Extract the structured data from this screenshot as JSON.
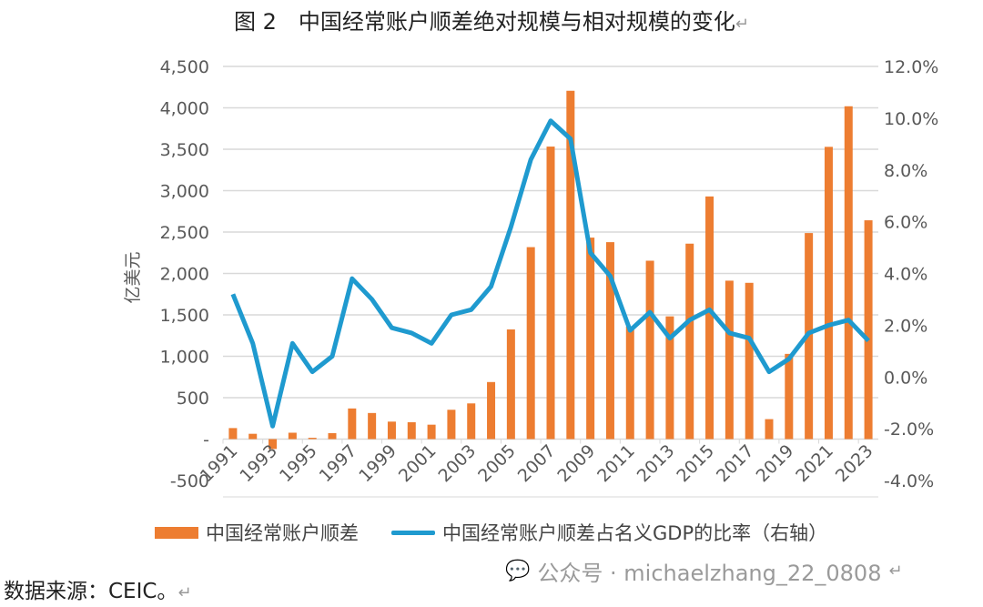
{
  "title": "图 2　中国经常账户顺差绝对规模与相对规模的变化",
  "source": "数据来源：CEIC。",
  "watermark": "公众号 · michaelzhang_22_0808",
  "chart_data": {
    "type": "bar+line",
    "ylabel": "亿美元",
    "ylim": [
      -500,
      4500
    ],
    "y_ticks": [
      "-500",
      "-",
      "500",
      "1,000",
      "1,500",
      "2,000",
      "2,500",
      "3,000",
      "3,500",
      "4,000",
      "4,500"
    ],
    "y2lim": [
      -4.0,
      12.0
    ],
    "y2_ticks": [
      "-4.0%",
      "-2.0%",
      "0.0%",
      "2.0%",
      "4.0%",
      "6.0%",
      "8.0%",
      "10.0%",
      "12.0%"
    ],
    "x_tick_labels": [
      "1991",
      "1993",
      "1995",
      "1997",
      "1999",
      "2001",
      "2003",
      "2005",
      "2007",
      "2009",
      "2011",
      "2013",
      "2015",
      "2017",
      "2019",
      "2021",
      "2023"
    ],
    "categories": [
      1991,
      1992,
      1993,
      1994,
      1995,
      1996,
      1997,
      1998,
      1999,
      2000,
      2001,
      2002,
      2003,
      2004,
      2005,
      2006,
      2007,
      2008,
      2009,
      2010,
      2011,
      2012,
      2013,
      2014,
      2015,
      2016,
      2017,
      2018,
      2019,
      2020,
      2021,
      2022,
      2023
    ],
    "grid": true,
    "legend_position": "bottom",
    "colors": {
      "bar": "#ED7D31",
      "line": "#1F9ACF"
    },
    "series": [
      {
        "name": "中国经常账户顺差",
        "type": "bar",
        "axis": "left",
        "values": [
          133,
          64,
          -119,
          77,
          16,
          72,
          370,
          315,
          211,
          204,
          174,
          354,
          431,
          689,
          1324,
          2318,
          3532,
          4206,
          2433,
          2378,
          1361,
          2154,
          1482,
          2360,
          2930,
          1913,
          1887,
          241,
          1029,
          2488,
          3529,
          4019,
          2642
        ]
      },
      {
        "name": "中国经常账户顺差占名义GDP的比率（右轴）",
        "type": "line",
        "axis": "right",
        "values": [
          3.2,
          1.3,
          -1.9,
          1.3,
          0.2,
          0.8,
          3.8,
          3.0,
          1.9,
          1.7,
          1.3,
          2.4,
          2.6,
          3.5,
          5.8,
          8.4,
          9.9,
          9.2,
          4.8,
          3.9,
          1.8,
          2.5,
          1.5,
          2.2,
          2.6,
          1.7,
          1.5,
          0.2,
          0.7,
          1.7,
          2.0,
          2.2,
          1.4
        ]
      }
    ]
  }
}
